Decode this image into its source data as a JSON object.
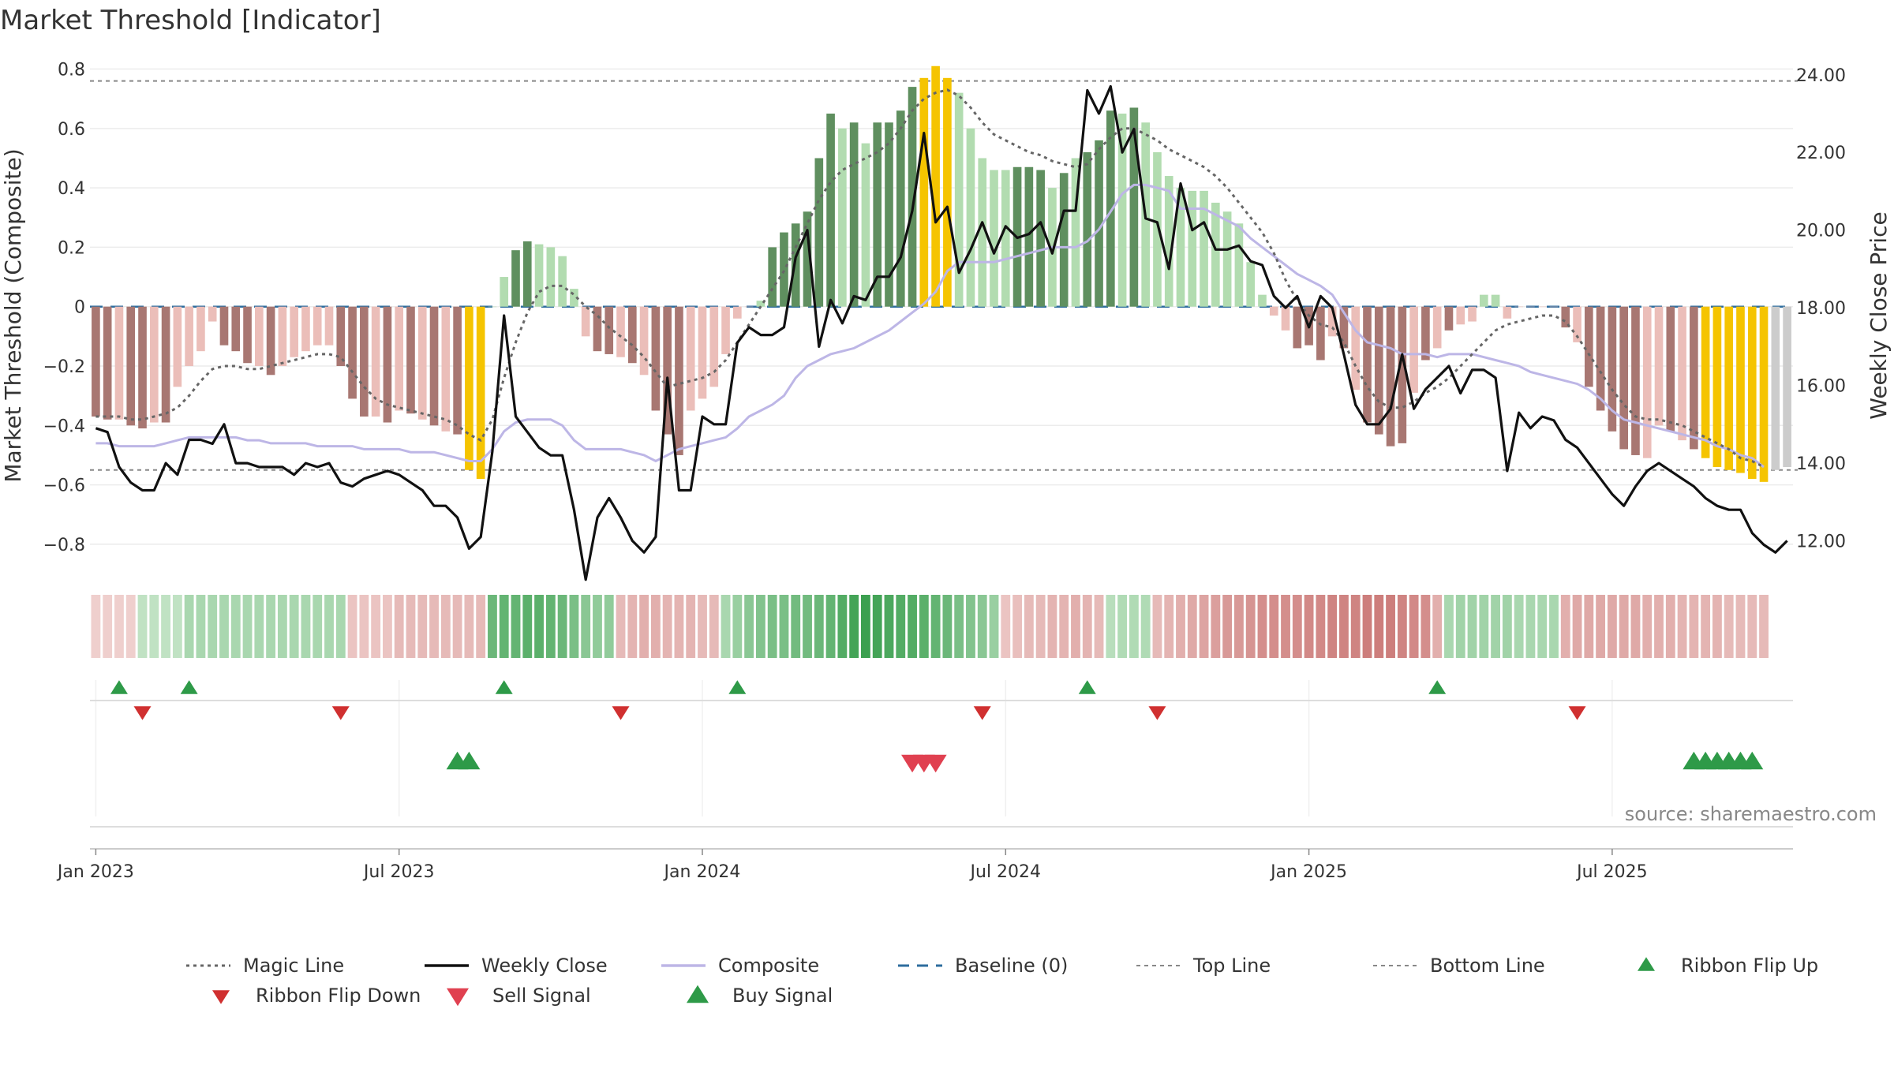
{
  "title": "Market Threshold [Indicator]",
  "source": "source: sharemaestro.com",
  "colors": {
    "bar_dark_red": "#a87772",
    "bar_light_red": "#ebbeb9",
    "bar_dark_green": "#5f8f5f",
    "bar_light_green": "#b2dcb0",
    "bar_gold": "#f5c400",
    "weekly_close": "#111111",
    "composite": "#bdb6e6",
    "magic": "#666666",
    "baseline": "#2e6d9e",
    "flip_up": "#2e9a48",
    "flip_down": "#d03030",
    "buy": "#2e9a48",
    "sell": "#e04050"
  },
  "chart_data": {
    "type": "bar",
    "ylabel": "Market Threshold (Composite)",
    "y2label": "Weekly Close Price",
    "ylim": [
      -0.88,
      0.82
    ],
    "y2lim": [
      11.3,
      24.3
    ],
    "yticks": [
      0.8,
      0.6,
      0.4,
      0.2,
      0,
      -0.2,
      -0.4,
      -0.6,
      -0.8
    ],
    "ytick_labels": [
      "0.8",
      "0.6",
      "0.4",
      "0.2",
      "0",
      "−0.2",
      "−0.4",
      "−0.6",
      "−0.8"
    ],
    "y2ticks": [
      24,
      22,
      20,
      18,
      16,
      14,
      12
    ],
    "y2tick_labels": [
      "24.00",
      "22.00",
      "20.00",
      "18.00",
      "16.00",
      "14.00",
      "12.00"
    ],
    "x_ticks": [
      {
        "label": "Jan 2023",
        "week": 1
      },
      {
        "label": "Jul 2023",
        "week": 27
      },
      {
        "label": "Jan 2024",
        "week": 53
      },
      {
        "label": "Jul 2024",
        "week": 79
      },
      {
        "label": "Jan 2025",
        "week": 105
      },
      {
        "label": "Jul 2025",
        "week": 131
      }
    ],
    "top_line": 0.76,
    "bottom_line": -0.55,
    "baseline": 0,
    "bars": [
      -0.37,
      -0.38,
      -0.38,
      -0.4,
      -0.41,
      -0.39,
      -0.39,
      -0.27,
      -0.2,
      -0.15,
      -0.05,
      -0.13,
      -0.15,
      -0.19,
      -0.2,
      -0.23,
      -0.2,
      -0.17,
      -0.15,
      -0.13,
      -0.13,
      -0.2,
      -0.31,
      -0.37,
      -0.37,
      -0.39,
      -0.35,
      -0.36,
      -0.38,
      -0.4,
      -0.42,
      -0.43,
      -0.55,
      -0.58,
      0.0,
      0.1,
      0.19,
      0.22,
      0.21,
      0.2,
      0.17,
      0.06,
      -0.1,
      -0.15,
      -0.16,
      -0.17,
      -0.19,
      -0.23,
      -0.35,
      -0.43,
      -0.5,
      -0.35,
      -0.31,
      -0.27,
      -0.16,
      -0.04,
      0.0,
      0.02,
      0.2,
      0.25,
      0.28,
      0.32,
      0.5,
      0.65,
      0.6,
      0.62,
      0.55,
      0.62,
      0.62,
      0.66,
      0.74,
      0.77,
      0.81,
      0.77,
      0.72,
      0.6,
      0.5,
      0.46,
      0.46,
      0.47,
      0.47,
      0.46,
      0.4,
      0.45,
      0.5,
      0.52,
      0.56,
      0.66,
      0.65,
      0.67,
      0.62,
      0.52,
      0.44,
      0.4,
      0.39,
      0.39,
      0.35,
      0.32,
      0.28,
      0.15,
      0.04,
      -0.03,
      -0.08,
      -0.14,
      -0.13,
      -0.18,
      -0.1,
      -0.14,
      -0.28,
      -0.39,
      -0.43,
      -0.47,
      -0.46,
      -0.29,
      -0.18,
      -0.14,
      -0.08,
      -0.06,
      -0.05,
      0.04,
      0.04,
      -0.04,
      0.0,
      0.0,
      0.0,
      0.0,
      -0.07,
      -0.12,
      -0.27,
      -0.35,
      -0.42,
      -0.48,
      -0.5,
      -0.51,
      -0.4,
      -0.42,
      -0.45,
      -0.48,
      -0.51,
      -0.54,
      -0.55,
      -0.56,
      -0.58,
      -0.59,
      -0.55,
      -0.54
    ],
    "bar_types": [
      "dr",
      "dr",
      "lr",
      "dr",
      "dr",
      "lr",
      "dr",
      "lr",
      "lr",
      "lr",
      "lr",
      "dr",
      "dr",
      "dr",
      "lr",
      "dr",
      "lr",
      "lr",
      "lr",
      "lr",
      "lr",
      "dr",
      "dr",
      "dr",
      "lr",
      "dr",
      "lr",
      "dr",
      "lr",
      "dr",
      "lr",
      "dr",
      "g",
      "g",
      "lg",
      "lg",
      "dg",
      "dg",
      "lg",
      "lg",
      "lg",
      "lg",
      "lr",
      "dr",
      "dr",
      "lr",
      "dr",
      "lr",
      "dr",
      "dr",
      "dr",
      "lr",
      "lr",
      "lr",
      "lr",
      "lr",
      "lr",
      "lg",
      "dg",
      "dg",
      "dg",
      "dg",
      "dg",
      "dg",
      "lg",
      "dg",
      "lg",
      "dg",
      "dg",
      "dg",
      "dg",
      "g",
      "g",
      "g",
      "lg",
      "lg",
      "lg",
      "lg",
      "lg",
      "dg",
      "dg",
      "dg",
      "lg",
      "dg",
      "lg",
      "dg",
      "dg",
      "dg",
      "lg",
      "dg",
      "lg",
      "lg",
      "lg",
      "lg",
      "lg",
      "lg",
      "lg",
      "lg",
      "lg",
      "lg",
      "lg",
      "lr",
      "lr",
      "dr",
      "dr",
      "dr",
      "lr",
      "dr",
      "lr",
      "dr",
      "dr",
      "dr",
      "dr",
      "lr",
      "dr",
      "lr",
      "dr",
      "lr",
      "lr",
      "lg",
      "lg",
      "lr",
      "lr",
      "lr",
      "lr",
      "lr",
      "dr",
      "lr",
      "dr",
      "dr",
      "dr",
      "dr",
      "dr",
      "lr",
      "lr",
      "dr",
      "lr",
      "dr",
      "g",
      "g",
      "g",
      "g",
      "g",
      "g"
    ],
    "weekly_close": [
      14.9,
      14.8,
      13.9,
      13.5,
      13.3,
      13.3,
      14.0,
      13.7,
      14.6,
      14.6,
      14.5,
      15.0,
      14.0,
      14.0,
      13.9,
      13.9,
      13.9,
      13.7,
      14.0,
      13.9,
      14.0,
      13.5,
      13.4,
      13.6,
      13.7,
      13.8,
      13.7,
      13.5,
      13.3,
      12.9,
      12.9,
      12.6,
      11.8,
      12.1,
      14.3,
      17.8,
      15.2,
      14.8,
      14.4,
      14.2,
      14.2,
      12.8,
      11.0,
      12.6,
      13.1,
      12.6,
      12.0,
      11.7,
      12.1,
      16.2,
      13.3,
      13.3,
      15.2,
      15.0,
      15.0,
      17.1,
      17.5,
      17.3,
      17.3,
      17.5,
      19.3,
      20.0,
      17.0,
      18.2,
      17.6,
      18.3,
      18.2,
      18.8,
      18.8,
      19.3,
      20.5,
      22.5,
      20.2,
      20.6,
      18.9,
      19.5,
      20.2,
      19.4,
      20.1,
      19.8,
      19.9,
      20.2,
      19.4,
      20.5,
      20.5,
      23.6,
      23.0,
      23.7,
      22.0,
      22.6,
      20.3,
      20.2,
      19.0,
      21.2,
      20.0,
      20.2,
      19.5,
      19.5,
      19.6,
      19.2,
      19.1,
      18.3,
      18.0,
      18.3,
      17.5,
      18.3,
      18.0,
      16.8,
      15.5,
      15.0,
      15.0,
      15.4,
      16.8,
      15.4,
      15.9,
      16.2,
      16.5,
      15.8,
      16.4,
      16.4,
      16.2,
      13.8,
      15.3,
      14.9,
      15.2,
      15.1,
      14.6,
      14.4,
      14.0,
      13.6,
      13.2,
      12.9,
      13.4,
      13.8,
      14.0,
      13.8,
      13.6,
      13.4,
      13.1,
      12.9,
      12.8,
      12.8,
      12.2,
      11.9,
      11.7,
      12.0
    ],
    "composite": [
      -0.46,
      -0.46,
      -0.47,
      -0.47,
      -0.47,
      -0.47,
      -0.46,
      -0.45,
      -0.44,
      -0.44,
      -0.44,
      -0.44,
      -0.44,
      -0.45,
      -0.45,
      -0.46,
      -0.46,
      -0.46,
      -0.46,
      -0.47,
      -0.47,
      -0.47,
      -0.47,
      -0.48,
      -0.48,
      -0.48,
      -0.48,
      -0.49,
      -0.49,
      -0.49,
      -0.5,
      -0.51,
      -0.52,
      -0.52,
      -0.48,
      -0.42,
      -0.39,
      -0.38,
      -0.38,
      -0.38,
      -0.4,
      -0.45,
      -0.48,
      -0.48,
      -0.48,
      -0.48,
      -0.49,
      -0.5,
      -0.52,
      -0.5,
      -0.48,
      -0.47,
      -0.46,
      -0.45,
      -0.44,
      -0.41,
      -0.37,
      -0.35,
      -0.33,
      -0.3,
      -0.24,
      -0.2,
      -0.18,
      -0.16,
      -0.15,
      -0.14,
      -0.12,
      -0.1,
      -0.08,
      -0.05,
      -0.02,
      0.01,
      0.05,
      0.12,
      0.15,
      0.15,
      0.15,
      0.15,
      0.16,
      0.17,
      0.18,
      0.19,
      0.2,
      0.2,
      0.2,
      0.22,
      0.26,
      0.32,
      0.38,
      0.41,
      0.41,
      0.4,
      0.39,
      0.33,
      0.33,
      0.33,
      0.31,
      0.29,
      0.27,
      0.23,
      0.2,
      0.17,
      0.14,
      0.11,
      0.09,
      0.07,
      0.04,
      -0.02,
      -0.08,
      -0.12,
      -0.13,
      -0.14,
      -0.16,
      -0.16,
      -0.16,
      -0.17,
      -0.16,
      -0.16,
      -0.16,
      -0.17,
      -0.18,
      -0.19,
      -0.2,
      -0.22,
      -0.23,
      -0.24,
      -0.25,
      -0.26,
      -0.28,
      -0.31,
      -0.35,
      -0.38,
      -0.39,
      -0.4,
      -0.41,
      -0.42,
      -0.43,
      -0.44,
      -0.45,
      -0.47,
      -0.48,
      -0.5,
      -0.51,
      -0.54
    ],
    "magic_line": [
      -0.37,
      -0.37,
      -0.37,
      -0.38,
      -0.38,
      -0.37,
      -0.36,
      -0.34,
      -0.3,
      -0.25,
      -0.21,
      -0.2,
      -0.2,
      -0.21,
      -0.21,
      -0.2,
      -0.19,
      -0.18,
      -0.17,
      -0.16,
      -0.16,
      -0.17,
      -0.22,
      -0.27,
      -0.31,
      -0.33,
      -0.34,
      -0.35,
      -0.36,
      -0.37,
      -0.38,
      -0.4,
      -0.43,
      -0.45,
      -0.38,
      -0.24,
      -0.12,
      -0.02,
      0.05,
      0.07,
      0.07,
      0.04,
      0.0,
      -0.03,
      -0.07,
      -0.1,
      -0.13,
      -0.17,
      -0.22,
      -0.27,
      -0.26,
      -0.25,
      -0.24,
      -0.22,
      -0.18,
      -0.12,
      -0.06,
      0.0,
      0.06,
      0.12,
      0.2,
      0.28,
      0.36,
      0.42,
      0.46,
      0.48,
      0.5,
      0.52,
      0.55,
      0.6,
      0.66,
      0.7,
      0.72,
      0.73,
      0.71,
      0.67,
      0.62,
      0.58,
      0.56,
      0.54,
      0.52,
      0.51,
      0.49,
      0.48,
      0.47,
      0.48,
      0.53,
      0.57,
      0.6,
      0.6,
      0.58,
      0.56,
      0.53,
      0.51,
      0.49,
      0.47,
      0.44,
      0.4,
      0.35,
      0.3,
      0.25,
      0.18,
      0.09,
      0.02,
      -0.03,
      -0.06,
      -0.07,
      -0.12,
      -0.2,
      -0.27,
      -0.32,
      -0.34,
      -0.34,
      -0.32,
      -0.29,
      -0.27,
      -0.24,
      -0.2,
      -0.16,
      -0.12,
      -0.08,
      -0.06,
      -0.05,
      -0.04,
      -0.03,
      -0.03,
      -0.05,
      -0.1,
      -0.16,
      -0.22,
      -0.28,
      -0.33,
      -0.37,
      -0.38,
      -0.38,
      -0.39,
      -0.4,
      -0.42,
      -0.44,
      -0.46,
      -0.48,
      -0.51,
      -0.52,
      -0.54
    ],
    "ribbon": [
      -0.1,
      -0.1,
      -0.1,
      -0.1,
      0.15,
      0.15,
      0.15,
      0.15,
      0.3,
      0.3,
      0.3,
      0.3,
      0.3,
      0.3,
      0.3,
      0.3,
      0.3,
      0.3,
      0.3,
      0.3,
      0.3,
      0.3,
      -0.2,
      -0.2,
      -0.2,
      -0.2,
      -0.3,
      -0.3,
      -0.3,
      -0.3,
      -0.3,
      -0.3,
      -0.3,
      -0.3,
      0.7,
      0.75,
      0.75,
      0.8,
      0.8,
      0.75,
      0.7,
      0.6,
      0.5,
      0.45,
      0.45,
      -0.3,
      -0.35,
      -0.4,
      -0.4,
      -0.35,
      -0.35,
      -0.35,
      -0.3,
      -0.3,
      0.3,
      0.4,
      0.5,
      0.55,
      0.6,
      0.6,
      0.65,
      0.65,
      0.7,
      0.75,
      0.85,
      0.95,
      1.0,
      0.95,
      0.9,
      0.85,
      0.85,
      0.8,
      0.75,
      0.7,
      0.6,
      0.55,
      0.5,
      0.4,
      -0.2,
      -0.25,
      -0.3,
      -0.3,
      -0.35,
      -0.35,
      -0.4,
      -0.35,
      -0.3,
      0.2,
      0.25,
      0.25,
      0.25,
      -0.3,
      -0.35,
      -0.4,
      -0.45,
      -0.5,
      -0.55,
      -0.6,
      -0.6,
      -0.65,
      -0.7,
      -0.7,
      -0.7,
      -0.7,
      -0.75,
      -0.75,
      -0.8,
      -0.8,
      -0.8,
      -0.85,
      -0.85,
      -0.85,
      -0.8,
      -0.75,
      -0.7,
      -0.4,
      0.3,
      0.35,
      0.35,
      0.35,
      0.35,
      0.35,
      0.3,
      0.3,
      0.3,
      0.3,
      -0.4,
      -0.45,
      -0.45,
      -0.45,
      -0.45,
      -0.45,
      -0.45,
      -0.4,
      -0.4,
      -0.4,
      -0.35,
      -0.35,
      -0.35,
      -0.35,
      -0.3,
      -0.3,
      -0.3,
      -0.3
    ],
    "ribbon_flip_up_weeks": [
      3,
      9,
      36,
      56,
      86,
      116
    ],
    "ribbon_flip_down_weeks": [
      5,
      22,
      46,
      77,
      92,
      128
    ],
    "buy_signal_weeks": [
      32,
      33,
      138,
      139,
      140,
      141,
      142,
      143
    ],
    "sell_signal_weeks": [
      71,
      72,
      73
    ],
    "legend": [
      {
        "label": "Magic Line",
        "style": "dotted",
        "color": "#666666"
      },
      {
        "label": "Weekly Close",
        "style": "solid",
        "color": "#111111"
      },
      {
        "label": "Composite",
        "style": "solid",
        "color": "#bdb6e6"
      },
      {
        "label": "Baseline (0)",
        "style": "dashed",
        "color": "#2e6d9e"
      },
      {
        "label": "Top Line",
        "style": "dotted-thin",
        "color": "#888888"
      },
      {
        "label": "Bottom Line",
        "style": "dotted-thin",
        "color": "#888888"
      },
      {
        "label": "Ribbon Flip Up",
        "style": "tri-up-small",
        "color": "#2e9a48"
      },
      {
        "label": "Ribbon Flip Down",
        "style": "tri-down-small",
        "color": "#d03030"
      },
      {
        "label": "Sell Signal",
        "style": "tri-down-big",
        "color": "#e04050"
      },
      {
        "label": "Buy Signal",
        "style": "tri-up-big",
        "color": "#2e9a48"
      }
    ]
  }
}
